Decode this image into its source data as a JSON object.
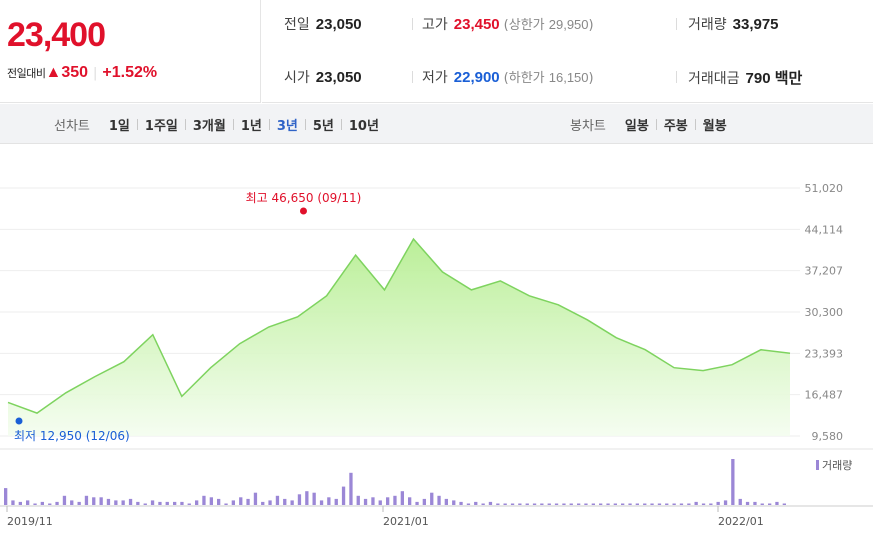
{
  "quote": {
    "price": "23,400",
    "change_label": "전일대비",
    "change_arrow": "▲",
    "change_amount": "350",
    "change_sep": "|",
    "change_pct": "+1.52%"
  },
  "stats": {
    "prev_close_label": "전일",
    "prev_close": "23,050",
    "high_label": "고가",
    "high": "23,450",
    "upper_limit_label": "(상한가",
    "upper_limit": "29,950",
    "upper_close": ")",
    "volume_label": "거래량",
    "volume": "33,975",
    "open_label": "시가",
    "open": "23,050",
    "low_label": "저가",
    "low": "22,900",
    "lower_limit_label": "(하한가",
    "lower_limit": "16,150",
    "lower_close": ")",
    "amount_label": "거래대금",
    "amount": "790 백만"
  },
  "tabs": {
    "line_title": "선차트",
    "line_ranges": [
      "1일",
      "1주일",
      "3개월",
      "1년",
      "3년",
      "5년",
      "10년"
    ],
    "active_range": "3년",
    "candle_title": "봉차트",
    "candle_ranges": [
      "일봉",
      "주봉",
      "월봉"
    ]
  },
  "colors": {
    "red": "#e0112b",
    "blue": "#1a5fd6",
    "line": "#7ed35f",
    "area_top": "#bff09d",
    "volume": "#9b87d6"
  },
  "chart_data": {
    "type": "area",
    "x": [
      "2019/11",
      "2019/12",
      "2020/01",
      "2020/02",
      "2020/03",
      "2020/04",
      "2020/05",
      "2020/06",
      "2020/07",
      "2020/08",
      "2020/09",
      "2020/10",
      "2020/11",
      "2020/12",
      "2021/01",
      "2021/02",
      "2021/03",
      "2021/04",
      "2021/05",
      "2021/06",
      "2021/07",
      "2021/08",
      "2021/09",
      "2021/10",
      "2021/11",
      "2021/12",
      "2022/01",
      "2022/02"
    ],
    "series": [
      {
        "values": [
          15200,
          13400,
          16800,
          19500,
          22000,
          26500,
          16200,
          21000,
          25000,
          27800,
          29500,
          33000,
          39800,
          34000,
          42500,
          37000,
          34000,
          35500,
          33000,
          31500,
          29000,
          26000,
          24000,
          21000,
          20500,
          21500,
          24000,
          23400
        ]
      }
    ],
    "yticks": [
      "51,020",
      "44,114",
      "37,207",
      "30,300",
      "23,393",
      "16,487",
      "9,580"
    ],
    "ylim": [
      9580,
      51020
    ],
    "xticks": [
      "2019/11",
      "2021/01",
      "2022/01"
    ],
    "max_annotation": "최고 46,650 (09/11)",
    "min_annotation": "최저 12,950 (12/06)",
    "volume_label": "거래량",
    "volume_values": [
      11,
      3,
      2,
      3,
      1,
      2,
      1,
      2,
      6,
      3,
      2,
      6,
      5,
      5,
      4,
      3,
      3,
      4,
      2,
      1,
      3,
      2,
      2,
      2,
      2,
      1,
      3,
      6,
      5,
      4,
      1,
      3,
      5,
      4,
      8,
      2,
      3,
      6,
      4,
      3,
      7,
      9,
      8,
      3,
      5,
      4,
      12,
      21,
      6,
      4,
      5,
      3,
      5,
      6,
      9,
      5,
      2,
      4,
      8,
      6,
      4,
      3,
      2,
      1,
      2,
      1,
      2,
      1,
      1,
      1,
      1,
      1,
      1,
      1,
      1,
      1,
      1,
      1,
      1,
      1,
      1,
      1,
      1,
      1,
      1,
      1,
      1,
      1,
      1,
      1,
      1,
      1,
      1,
      1,
      2,
      1,
      1,
      2,
      3,
      30,
      4,
      2,
      2,
      1,
      1,
      2,
      1
    ]
  }
}
